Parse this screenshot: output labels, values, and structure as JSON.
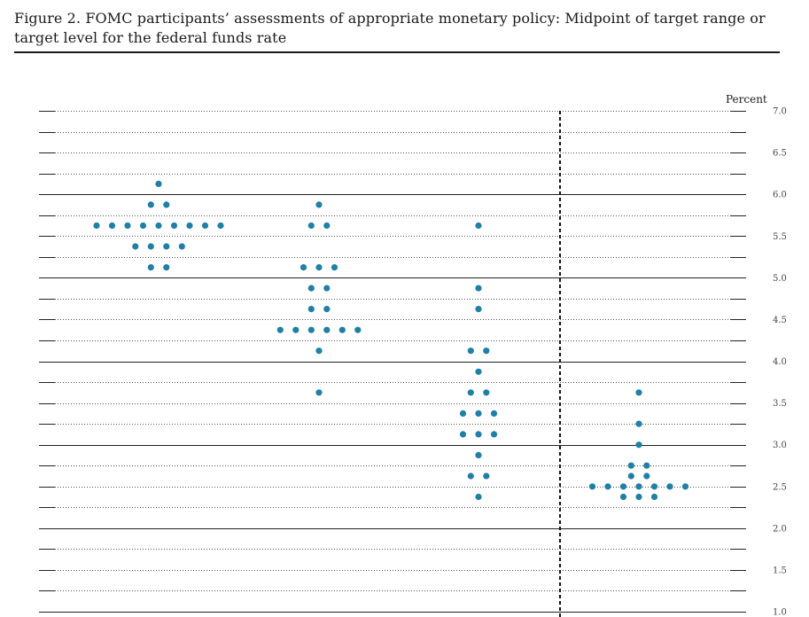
{
  "figure": {
    "caption": "Figure 2. FOMC participants’ assessments of appropriate monetary policy: Midpoint of target range or target level for the federal funds rate"
  },
  "chart_data": {
    "type": "scatter",
    "subtype": "dot-plot",
    "ylabel": "Percent",
    "ylim": [
      1.0,
      7.0
    ],
    "y_ticks": [
      1.0,
      1.5,
      2.0,
      2.5,
      3.0,
      3.5,
      4.0,
      4.5,
      5.0,
      5.5,
      6.0,
      6.5,
      7.0
    ],
    "y_tick_labels": [
      "1.0",
      "1.5",
      "2.0",
      "2.5",
      "3.0",
      "3.5",
      "4.0",
      "4.5",
      "5.0",
      "5.5",
      "6.0",
      "6.5",
      "7.0"
    ],
    "grid": "dotted minor lines every 0.25, solid lines every 1.0",
    "dot_color": "#1f7fa6",
    "divider": "dashed vertical line before the last group",
    "groups": [
      {
        "label": "",
        "points": [
          {
            "y": 6.125,
            "count": 1
          },
          {
            "y": 5.875,
            "count": 2
          },
          {
            "y": 5.625,
            "count": 9
          },
          {
            "y": 5.375,
            "count": 4
          },
          {
            "y": 5.125,
            "count": 2
          }
        ]
      },
      {
        "label": "",
        "points": [
          {
            "y": 5.875,
            "count": 1
          },
          {
            "y": 5.625,
            "count": 2
          },
          {
            "y": 5.125,
            "count": 3
          },
          {
            "y": 4.875,
            "count": 2
          },
          {
            "y": 4.625,
            "count": 2
          },
          {
            "y": 4.375,
            "count": 6
          },
          {
            "y": 4.125,
            "count": 1
          },
          {
            "y": 3.625,
            "count": 1
          }
        ]
      },
      {
        "label": "",
        "points": [
          {
            "y": 5.625,
            "count": 1
          },
          {
            "y": 4.875,
            "count": 1
          },
          {
            "y": 4.625,
            "count": 1
          },
          {
            "y": 4.125,
            "count": 2
          },
          {
            "y": 3.875,
            "count": 1
          },
          {
            "y": 3.625,
            "count": 2
          },
          {
            "y": 3.375,
            "count": 3
          },
          {
            "y": 3.125,
            "count": 3
          },
          {
            "y": 2.875,
            "count": 1
          },
          {
            "y": 2.625,
            "count": 2
          },
          {
            "y": 2.375,
            "count": 1
          }
        ]
      },
      {
        "label": "",
        "points": [
          {
            "y": 3.625,
            "count": 1
          },
          {
            "y": 3.25,
            "count": 1
          },
          {
            "y": 3.0,
            "count": 1
          },
          {
            "y": 2.75,
            "count": 2
          },
          {
            "y": 2.625,
            "count": 2
          },
          {
            "y": 2.5,
            "count": 7
          },
          {
            "y": 2.375,
            "count": 3
          }
        ]
      }
    ]
  }
}
